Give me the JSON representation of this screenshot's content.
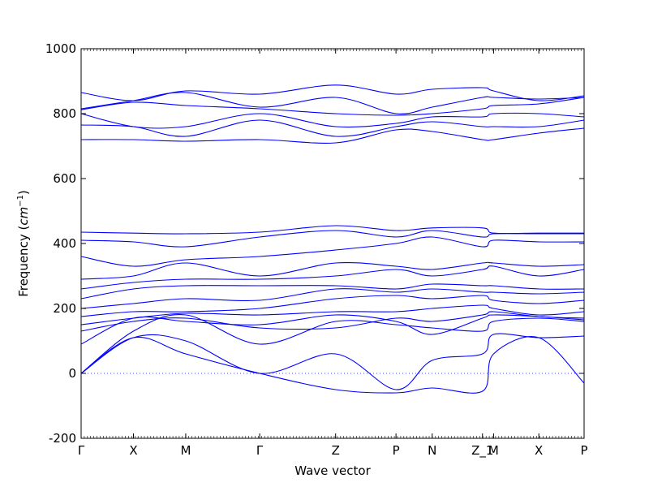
{
  "chart_data": {
    "type": "line",
    "title": "",
    "xlabel": "Wave vector",
    "ylabel": "Frequency",
    "ylabel_unit_math": "cm",
    "ylabel_unit_exp": "−1",
    "ylim": [
      -200,
      1000
    ],
    "yticks": [
      -200,
      0,
      200,
      400,
      600,
      800,
      1000
    ],
    "xlim": [
      0,
      10
    ],
    "kpoints": [
      {
        "label": "Γ",
        "x": 0
      },
      {
        "label": "X",
        "x": 1.04
      },
      {
        "label": "M",
        "x": 2.08
      },
      {
        "label": "Γ",
        "x": 3.55
      },
      {
        "label": "Z",
        "x": 5.06
      },
      {
        "label": "P",
        "x": 6.26
      },
      {
        "label": "N",
        "x": 6.98
      },
      {
        "label": "Z_1",
        "x": 7.98
      },
      {
        "label": "M",
        "x": 8.2
      },
      {
        "label": "X",
        "x": 9.1
      },
      {
        "label": "P",
        "x": 10.0
      }
    ],
    "grid": false,
    "zero_line": true,
    "line_color": "#0000ff",
    "bands": [
      {
        "x": [
          0,
          1.04,
          2.08,
          3.55,
          5.06,
          6.26,
          6.98,
          7.98,
          8.2,
          9.1,
          10
        ],
        "y": [
          0,
          110,
          60,
          0,
          -50,
          -60,
          -45,
          -55,
          60,
          110,
          -30
        ]
      },
      {
        "x": [
          0,
          1.04,
          2.08,
          3.55,
          5.06,
          6.26,
          6.98,
          7.98,
          8.2,
          9.1,
          10
        ],
        "y": [
          0,
          110,
          100,
          0,
          60,
          -50,
          40,
          60,
          120,
          110,
          115
        ]
      },
      {
        "x": [
          0,
          1.04,
          2.08,
          3.55,
          5.06,
          6.26,
          6.98,
          7.98,
          8.2,
          9.1,
          10
        ],
        "y": [
          0,
          130,
          180,
          90,
          160,
          150,
          140,
          130,
          160,
          170,
          160
        ]
      },
      {
        "x": [
          0,
          1.04,
          2.08,
          3.55,
          5.06,
          6.26,
          6.98,
          7.98,
          8.2,
          9.1,
          10
        ],
        "y": [
          90,
          170,
          160,
          150,
          180,
          160,
          120,
          170,
          180,
          175,
          165
        ]
      },
      {
        "x": [
          0,
          1.04,
          2.08,
          3.55,
          5.06,
          6.26,
          6.98,
          7.98,
          8.2,
          9.1,
          10
        ],
        "y": [
          130,
          160,
          170,
          140,
          140,
          170,
          160,
          180,
          190,
          175,
          170
        ]
      },
      {
        "x": [
          0,
          1.04,
          2.08,
          3.55,
          5.06,
          6.26,
          6.98,
          7.98,
          8.2,
          9.1,
          10
        ],
        "y": [
          150,
          170,
          185,
          180,
          190,
          190,
          200,
          210,
          200,
          180,
          190
        ]
      },
      {
        "x": [
          0,
          1.04,
          2.08,
          3.55,
          5.06,
          6.26,
          6.98,
          7.98,
          8.2,
          9.1,
          10
        ],
        "y": [
          175,
          190,
          190,
          200,
          230,
          240,
          230,
          240,
          225,
          215,
          225
        ]
      },
      {
        "x": [
          0,
          1.04,
          2.08,
          3.55,
          5.06,
          6.26,
          6.98,
          7.98,
          8.2,
          9.1,
          10
        ],
        "y": [
          200,
          215,
          230,
          225,
          260,
          250,
          260,
          250,
          250,
          245,
          250
        ]
      },
      {
        "x": [
          0,
          1.04,
          2.08,
          3.55,
          5.06,
          6.26,
          6.98,
          7.98,
          8.2,
          9.1,
          10
        ],
        "y": [
          230,
          260,
          270,
          270,
          270,
          260,
          275,
          270,
          270,
          260,
          260
        ]
      },
      {
        "x": [
          0,
          1.04,
          2.08,
          3.55,
          5.06,
          6.26,
          6.98,
          7.98,
          8.2,
          9.1,
          10
        ],
        "y": [
          260,
          280,
          290,
          290,
          300,
          320,
          300,
          320,
          330,
          300,
          320
        ]
      },
      {
        "x": [
          0,
          1.04,
          2.08,
          3.55,
          5.06,
          6.26,
          6.98,
          7.98,
          8.2,
          9.1,
          10
        ],
        "y": [
          290,
          300,
          340,
          300,
          340,
          330,
          320,
          340,
          340,
          330,
          335
        ]
      },
      {
        "x": [
          0,
          1.04,
          2.08,
          3.55,
          5.06,
          6.26,
          6.98,
          7.98,
          8.2,
          9.1,
          10
        ],
        "y": [
          360,
          330,
          350,
          360,
          380,
          400,
          420,
          390,
          410,
          405,
          405
        ]
      },
      {
        "x": [
          0,
          1.04,
          2.08,
          3.55,
          5.06,
          6.26,
          6.98,
          7.98,
          8.2,
          9.1,
          10
        ],
        "y": [
          410,
          405,
          390,
          420,
          440,
          420,
          440,
          420,
          430,
          430,
          430
        ]
      },
      {
        "x": [
          0,
          1.04,
          2.08,
          3.55,
          5.06,
          6.26,
          6.98,
          7.98,
          8.2,
          9.1,
          10
        ],
        "y": [
          435,
          432,
          430,
          435,
          455,
          440,
          448,
          448,
          432,
          432,
          432
        ]
      },
      {
        "x": [
          0,
          1.04,
          2.08,
          3.55,
          5.06,
          6.26,
          6.98,
          7.98,
          8.2,
          9.1,
          10
        ],
        "y": [
          720,
          720,
          715,
          720,
          710,
          750,
          745,
          720,
          720,
          740,
          755
        ]
      },
      {
        "x": [
          0,
          1.04,
          2.08,
          3.55,
          5.06,
          6.26,
          6.98,
          7.98,
          8.2,
          9.1,
          10
        ],
        "y": [
          765,
          760,
          730,
          780,
          730,
          760,
          775,
          760,
          760,
          760,
          780
        ]
      },
      {
        "x": [
          0,
          1.04,
          2.08,
          3.55,
          5.06,
          6.26,
          6.98,
          7.98,
          8.2,
          9.1,
          10
        ],
        "y": [
          800,
          760,
          760,
          800,
          760,
          770,
          790,
          790,
          800,
          800,
          790
        ]
      },
      {
        "x": [
          0,
          1.04,
          2.08,
          3.55,
          5.06,
          6.26,
          6.98,
          7.98,
          8.2,
          9.1,
          10
        ],
        "y": [
          812,
          835,
          825,
          815,
          800,
          795,
          800,
          815,
          825,
          830,
          850
        ]
      },
      {
        "x": [
          0,
          1.04,
          2.08,
          3.55,
          5.06,
          6.26,
          6.98,
          7.98,
          8.2,
          9.1,
          10
        ],
        "y": [
          815,
          840,
          865,
          820,
          850,
          800,
          820,
          850,
          850,
          845,
          850
        ]
      },
      {
        "x": [
          0,
          1.04,
          2.08,
          3.55,
          5.06,
          6.26,
          6.98,
          7.98,
          8.2,
          9.1,
          10
        ],
        "y": [
          865,
          840,
          870,
          860,
          888,
          860,
          875,
          880,
          870,
          840,
          855
        ]
      }
    ]
  }
}
